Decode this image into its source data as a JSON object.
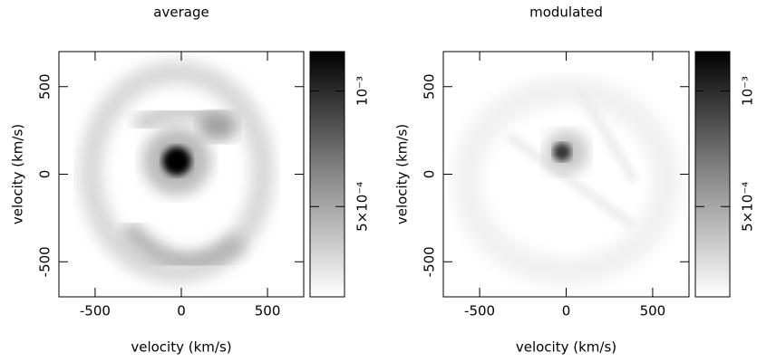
{
  "chart_data": [
    {
      "type": "heatmap",
      "title": "average",
      "xlabel": "velocity (km/s)",
      "ylabel": "velocity (km/s)",
      "xlim": [
        -710,
        710
      ],
      "ylim": [
        -700,
        700
      ],
      "xticks": [
        -500,
        0,
        500
      ],
      "yticks": [
        -500,
        0,
        500
      ],
      "clim": [
        0.00011,
        0.00117
      ],
      "cticks": [
        {
          "value": 0.0005,
          "label": "5×10⁻⁴"
        },
        {
          "value": 0.001,
          "label": "10⁻³"
        }
      ]
    },
    {
      "type": "heatmap",
      "title": "modulated",
      "xlabel": "velocity (km/s)",
      "ylabel": "velocity (km/s)",
      "xlim": [
        -710,
        710
      ],
      "ylim": [
        -700,
        700
      ],
      "xticks": [
        -500,
        0,
        500
      ],
      "yticks": [
        -500,
        0,
        500
      ],
      "clim": [
        0.00011,
        0.00117
      ],
      "cticks": [
        {
          "value": 0.0005,
          "label": "5×10⁻⁴"
        },
        {
          "value": 0.001,
          "label": "10⁻³"
        }
      ]
    }
  ]
}
